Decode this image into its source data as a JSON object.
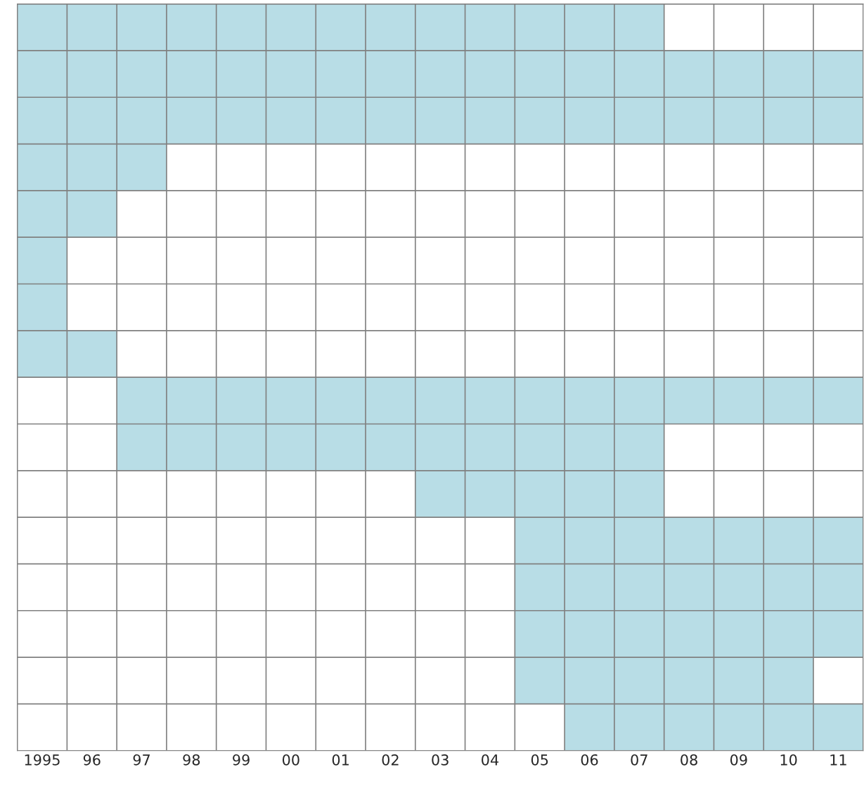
{
  "chart_data": {
    "type": "bar",
    "orientation": "horizontal",
    "relative": false,
    "categories": [
      null,
      null,
      null,
      null,
      null,
      null,
      null,
      null,
      null,
      null,
      null,
      null,
      null,
      null,
      null,
      null
    ],
    "base": [
      1994.5,
      1994.5,
      1994.5,
      1994.5,
      1994.5,
      1994.5,
      1994.5,
      1994.5,
      1996.5,
      1996.5,
      2002.5,
      2004.5,
      2004.5,
      2004.5,
      2004.5,
      2005.5
    ],
    "values": [
      13,
      17,
      17,
      3,
      2,
      1,
      1,
      2,
      15,
      11,
      5,
      7,
      7,
      7,
      6,
      6
    ],
    "color": "#b8dde6",
    "xlim": [
      1994.5,
      2011.5
    ],
    "xticks": [
      {
        "value": 1995,
        "label": "1995"
      },
      {
        "value": 1996,
        "label": "96"
      },
      {
        "value": 1997,
        "label": "97"
      },
      {
        "value": 1998,
        "label": "98"
      },
      {
        "value": 1999,
        "label": "99"
      },
      {
        "value": 2000,
        "label": "00"
      },
      {
        "value": 2001,
        "label": "01"
      },
      {
        "value": 2002,
        "label": "02"
      },
      {
        "value": 2003,
        "label": "03"
      },
      {
        "value": 2004,
        "label": "04"
      },
      {
        "value": 2005,
        "label": "05"
      },
      {
        "value": 2006,
        "label": "06"
      },
      {
        "value": 2007,
        "label": "07"
      },
      {
        "value": 2008,
        "label": "08"
      },
      {
        "value": 2009,
        "label": "09"
      },
      {
        "value": 2010,
        "label": "10"
      },
      {
        "value": 2011,
        "label": "11"
      }
    ],
    "grid": true
  }
}
